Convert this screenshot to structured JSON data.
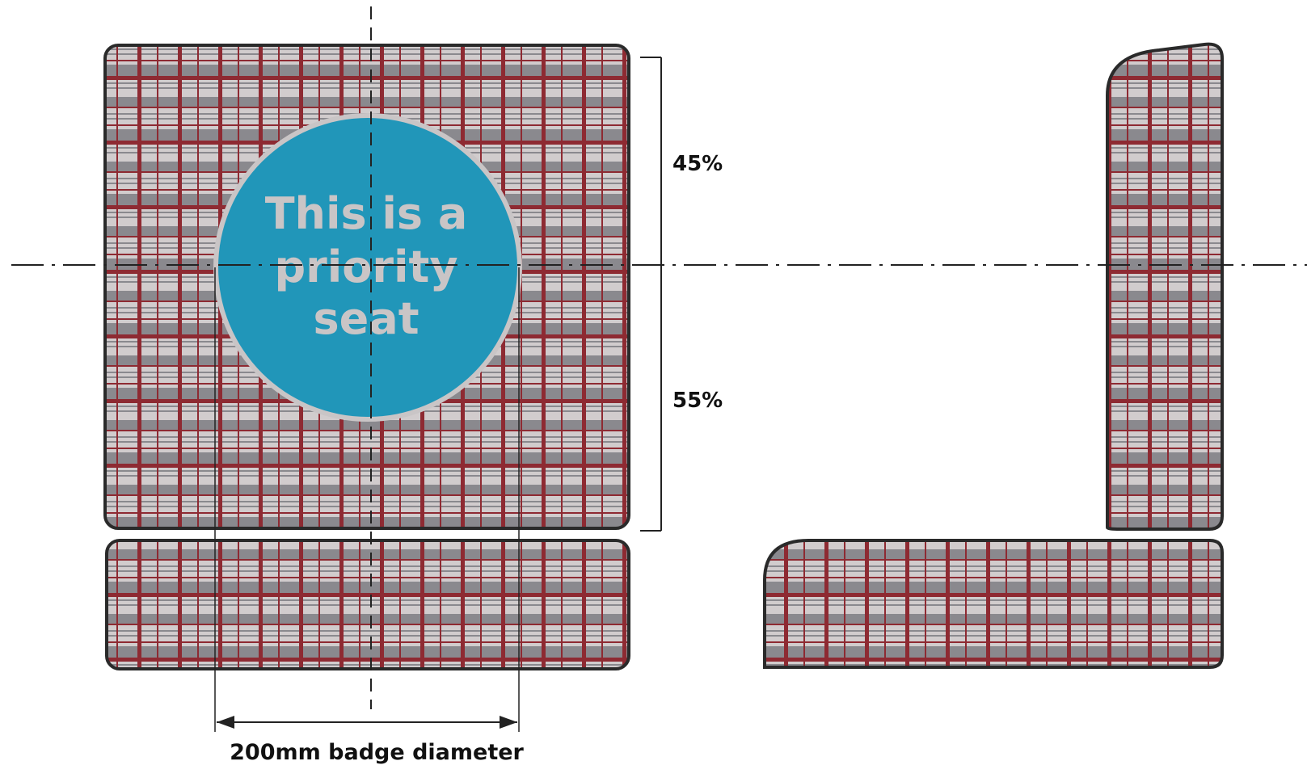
{
  "badge": {
    "line1": "This is a",
    "line2": "priority",
    "line3": "seat",
    "fill_color": "#2196B9",
    "ring_color": "#C9C5C6",
    "text_color": "#C9C5C6"
  },
  "dimensions": {
    "upper_percent": "45%",
    "lower_percent": "55%",
    "badge_diameter_label": "200mm badge diameter"
  },
  "fabric": {
    "stripe_red": "#8E2A32",
    "grey_dark": "#8A898E",
    "grey_light": "#D1CCCD",
    "outline": "#2A2A2A"
  }
}
